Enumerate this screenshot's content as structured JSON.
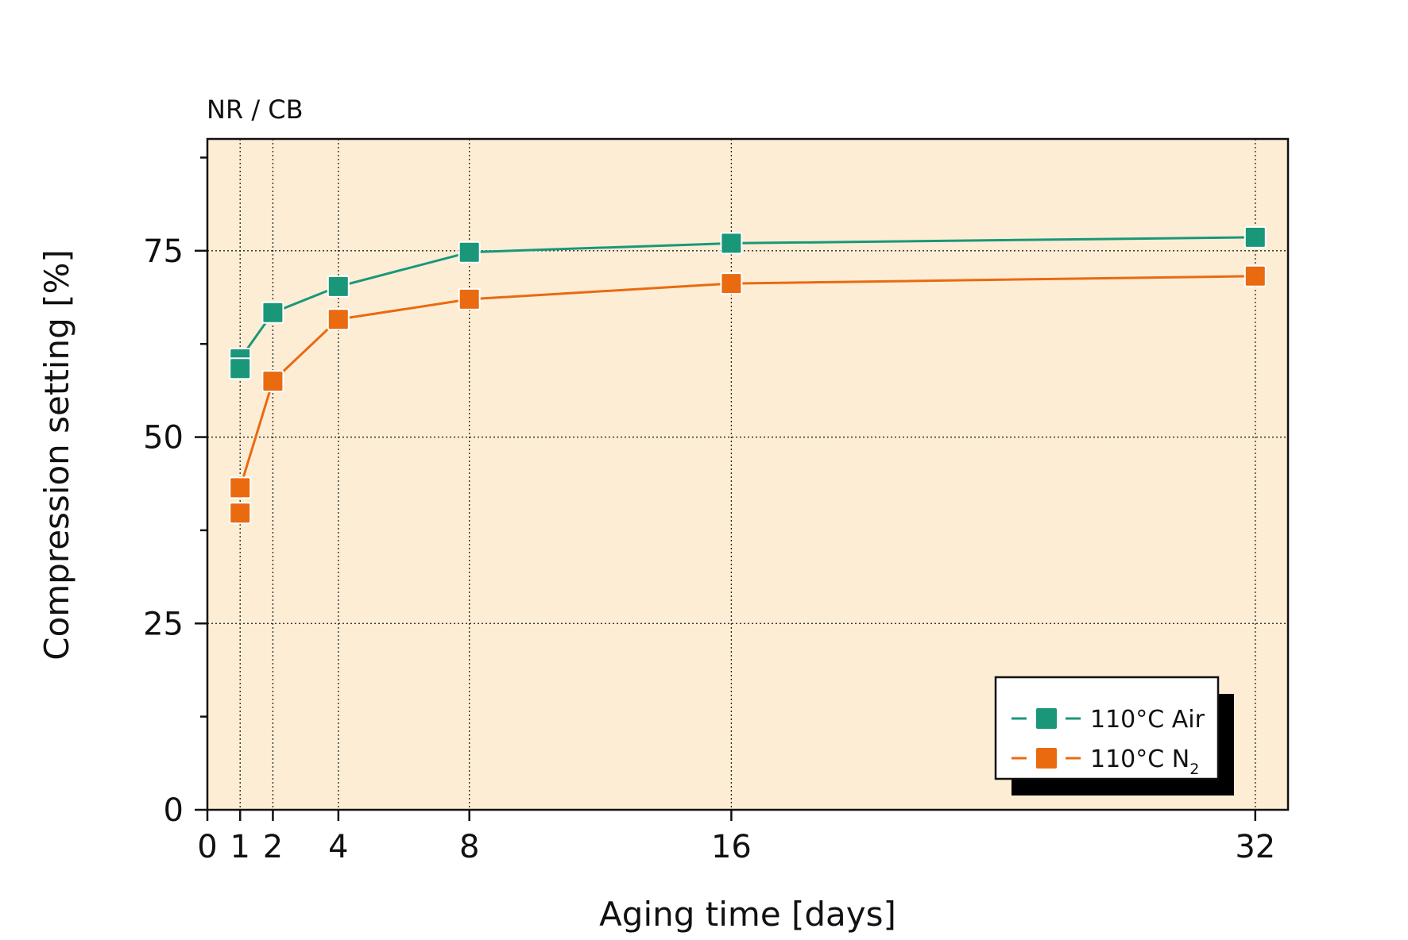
{
  "chart_data": {
    "type": "line",
    "title": "NR / CB",
    "xlabel": "Aging time [days]",
    "ylabel": "Compression setting [%]",
    "xlim": [
      0,
      33
    ],
    "ylim": [
      0,
      90
    ],
    "x_ticks": [
      0,
      1,
      2,
      4,
      8,
      16,
      32
    ],
    "x_tick_labels": [
      "0",
      "1",
      "2",
      "4",
      "8",
      "16",
      "32"
    ],
    "y_ticks_major": [
      0,
      25,
      50,
      75
    ],
    "y_tick_labels": [
      "0",
      "25",
      "50",
      "75"
    ],
    "y_ticks_minor": [
      12.5,
      37.5,
      62.5,
      87.5
    ],
    "grid": true,
    "legend_position": "bottom-right",
    "plot_background": "#fdedd5",
    "series": [
      {
        "name": "110°C Air",
        "legend_main": "110°C Air",
        "legend_sub": "",
        "color": "#1a9779",
        "marker": "square",
        "line_style": "solid",
        "points": [
          [
            1,
            60.5
          ],
          [
            1,
            59.2
          ],
          [
            2,
            66.7
          ],
          [
            4,
            70.2
          ],
          [
            8,
            74.8
          ],
          [
            16,
            76.0
          ],
          [
            32,
            76.8
          ]
        ],
        "line_path": [
          [
            1,
            60.5
          ],
          [
            2,
            66.7
          ],
          [
            4,
            70.2
          ],
          [
            8,
            74.8
          ],
          [
            16,
            76.0
          ],
          [
            32,
            76.8
          ]
        ]
      },
      {
        "name": "110°C N2",
        "legend_main": "110°C N",
        "legend_sub": "2",
        "color": "#ea6a10",
        "marker": "square",
        "line_style": "solid",
        "points": [
          [
            1,
            43.2
          ],
          [
            1,
            39.8
          ],
          [
            2,
            57.5
          ],
          [
            4,
            65.8
          ],
          [
            8,
            68.5
          ],
          [
            16,
            70.6
          ],
          [
            32,
            71.6
          ]
        ],
        "line_path": [
          [
            1,
            43.2
          ],
          [
            2,
            57.5
          ],
          [
            4,
            65.8
          ],
          [
            8,
            68.5
          ],
          [
            16,
            70.6
          ],
          [
            32,
            71.6
          ]
        ]
      }
    ]
  }
}
